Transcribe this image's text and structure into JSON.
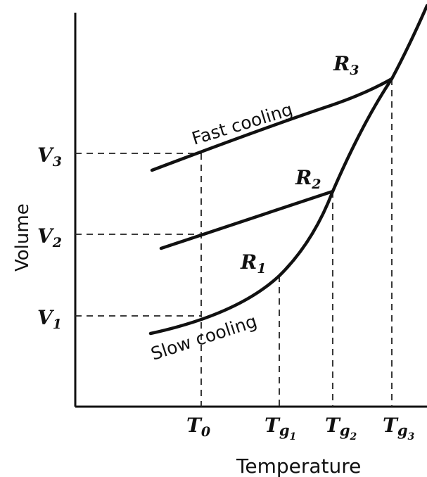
{
  "diagram": {
    "x_axis_label": "Temperature",
    "y_axis_label": "Volume",
    "volume_levels": [
      {
        "main": "V",
        "sub": "3"
      },
      {
        "main": "V",
        "sub": "2"
      },
      {
        "main": "V",
        "sub": "1"
      }
    ],
    "temperature_ticks": [
      {
        "main": "T",
        "sub": "0",
        "subsub": ""
      },
      {
        "main": "T",
        "sub": "g",
        "subsub": "1"
      },
      {
        "main": "T",
        "sub": "g",
        "subsub": "2"
      },
      {
        "main": "T",
        "sub": "g",
        "subsub": "3"
      }
    ],
    "points": [
      {
        "main": "R",
        "sub": "1"
      },
      {
        "main": "R",
        "sub": "2"
      },
      {
        "main": "R",
        "sub": "3"
      }
    ],
    "curve_labels": {
      "fast": "Fast cooling",
      "slow": "Slow cooling"
    }
  }
}
